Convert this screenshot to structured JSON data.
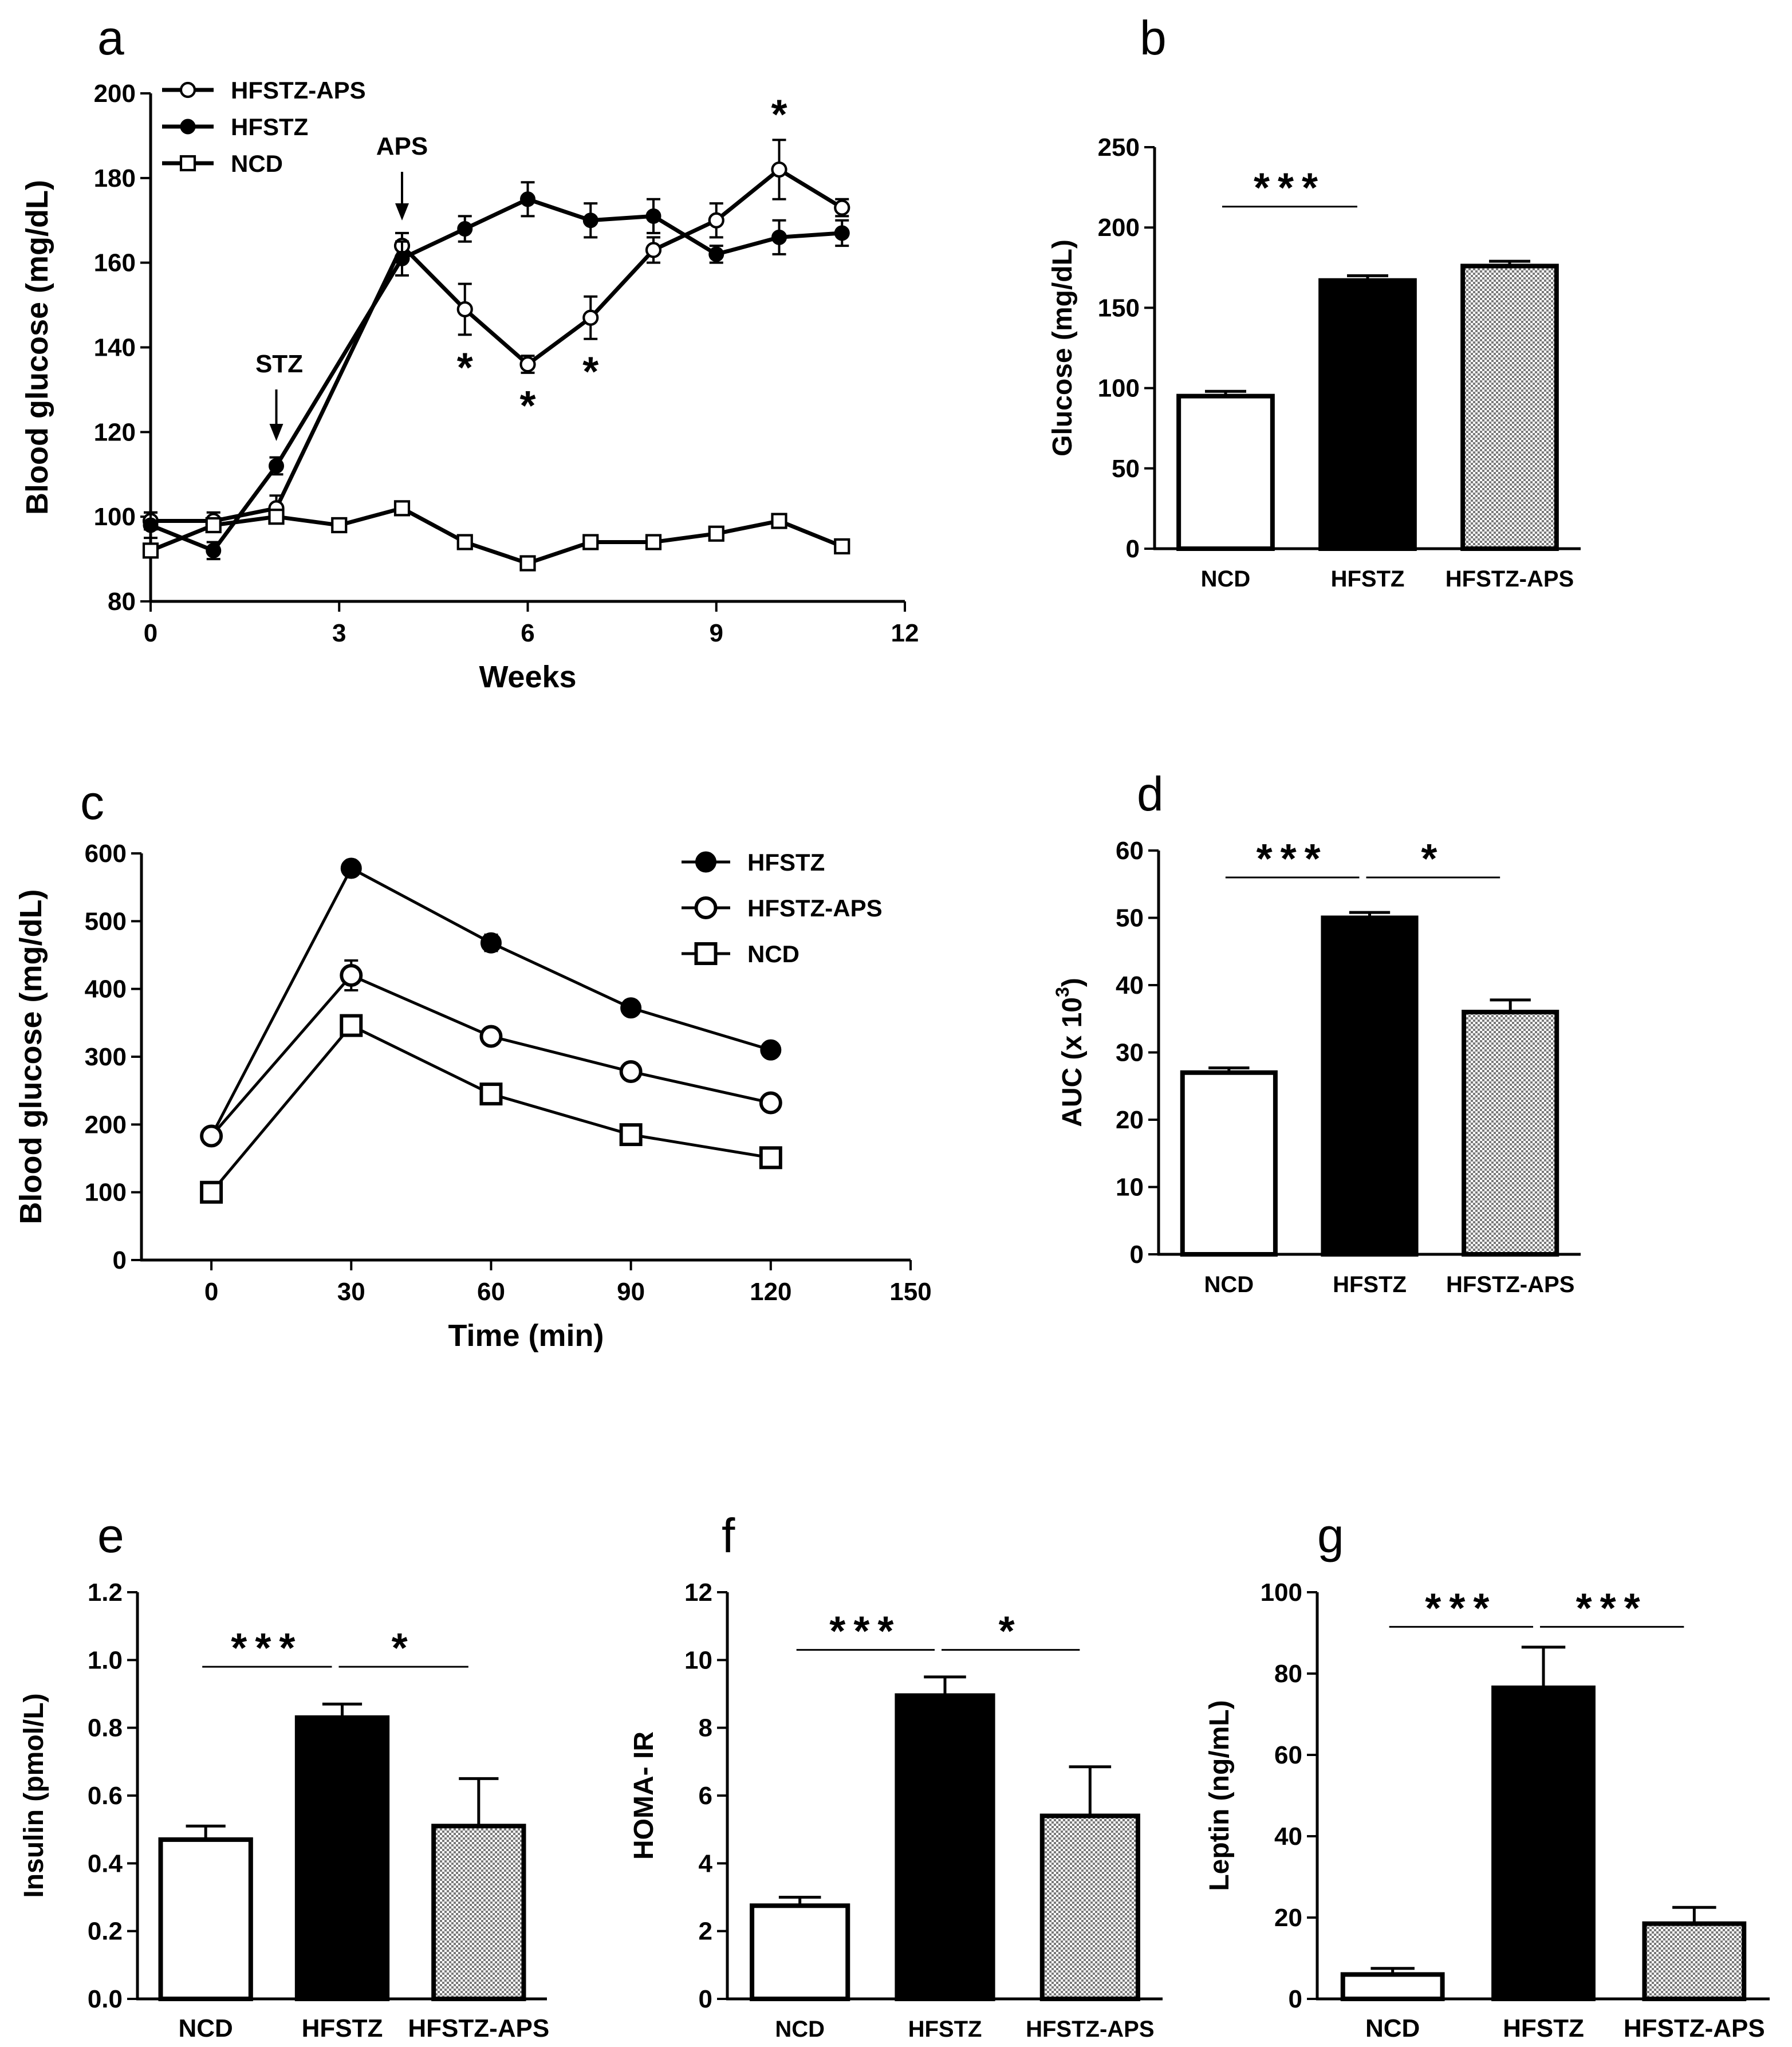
{
  "colors": {
    "black": "#000000",
    "white": "#ffffff",
    "hatch": "#9a9a9a"
  },
  "chart_data": [
    {
      "id": "a",
      "type": "line",
      "panel_label": "a",
      "xlabel": "Weeks",
      "ylabel": "Blood glucose (mg/dL)",
      "xlim": [
        0,
        12
      ],
      "ylim": [
        80,
        200
      ],
      "xticks": [
        0,
        3,
        6,
        9,
        12
      ],
      "yticks": [
        80,
        100,
        120,
        140,
        160,
        180,
        200
      ],
      "legend": [
        "HFSTZ-APS",
        "HFSTZ",
        "NCD"
      ],
      "annotations": {
        "stz": "STZ",
        "stz_week": 2,
        "aps": "APS",
        "aps_week": 4,
        "star": "*",
        "star_weeks": [
          5,
          6,
          7,
          10
        ]
      },
      "series": [
        {
          "name": "HFSTZ-APS",
          "marker": "open-circle",
          "x": [
            0,
            1,
            2,
            4,
            5,
            6,
            7,
            8,
            9,
            10,
            11
          ],
          "y": [
            99,
            99,
            102,
            164,
            149,
            136,
            147,
            163,
            170,
            182,
            173
          ],
          "err": [
            2,
            2,
            3,
            3,
            6,
            2,
            5,
            3,
            4,
            7,
            2
          ]
        },
        {
          "name": "HFSTZ",
          "marker": "filled-circle",
          "x": [
            0,
            1,
            2,
            4,
            5,
            6,
            7,
            8,
            9,
            10,
            11
          ],
          "y": [
            98,
            92,
            112,
            161,
            168,
            175,
            170,
            171,
            162,
            166,
            167
          ],
          "err": [
            3,
            2,
            2,
            4,
            3,
            4,
            4,
            4,
            2,
            4,
            3
          ]
        },
        {
          "name": "NCD",
          "marker": "open-square",
          "x": [
            0,
            1,
            2,
            3,
            4,
            5,
            6,
            7,
            8,
            9,
            10,
            11
          ],
          "y": [
            92,
            98,
            100,
            98,
            102,
            94,
            89,
            94,
            94,
            96,
            99,
            93
          ],
          "err": [
            1,
            1,
            1,
            1,
            1,
            1,
            1,
            1,
            1,
            1,
            1,
            1
          ]
        }
      ]
    },
    {
      "id": "b",
      "type": "bar",
      "panel_label": "b",
      "ylabel": "Glucose (mg/dL)",
      "categories": [
        "NCD",
        "HFSTZ",
        "HFSTZ-APS"
      ],
      "values": [
        95,
        167,
        176
      ],
      "err": [
        3,
        3,
        3
      ],
      "ylim": [
        0,
        250
      ],
      "yticks": [
        0,
        50,
        100,
        150,
        200,
        250
      ],
      "sig": [
        {
          "from": 0,
          "to": 1,
          "label": "***",
          "level": 213
        }
      ]
    },
    {
      "id": "c",
      "type": "line",
      "panel_label": "c",
      "xlabel": "Time (min)",
      "ylabel": "Blood glucose (mg/dL)",
      "xlim": [
        -15,
        150
      ],
      "ylim": [
        0,
        600
      ],
      "xticks": [
        0,
        30,
        60,
        90,
        120,
        150
      ],
      "yticks": [
        0,
        100,
        200,
        300,
        400,
        500,
        600
      ],
      "legend": [
        "HFSTZ",
        "HFSTZ-APS",
        "NCD"
      ],
      "series": [
        {
          "name": "HFSTZ",
          "marker": "filled-circle",
          "x": [
            0,
            30,
            60,
            90,
            120
          ],
          "y": [
            183,
            578,
            468,
            372,
            310
          ],
          "err": [
            0,
            0,
            12,
            0,
            0
          ]
        },
        {
          "name": "HFSTZ-APS",
          "marker": "open-circle",
          "x": [
            0,
            30,
            60,
            90,
            120
          ],
          "y": [
            183,
            420,
            330,
            278,
            232
          ],
          "err": [
            0,
            22,
            0,
            0,
            0
          ]
        },
        {
          "name": "NCD",
          "marker": "open-square",
          "x": [
            0,
            30,
            60,
            90,
            120
          ],
          "y": [
            100,
            346,
            245,
            185,
            151
          ],
          "err": [
            0,
            10,
            0,
            0,
            0
          ]
        }
      ]
    },
    {
      "id": "d",
      "type": "bar",
      "panel_label": "d",
      "ylabel": "AUC (x 10",
      "ylabel_sup": "3",
      "ylabel_end": ")",
      "categories": [
        "NCD",
        "HFSTZ",
        "HFSTZ-APS"
      ],
      "values": [
        27,
        50,
        36
      ],
      "err": [
        0.7,
        0.8,
        1.8
      ],
      "ylim": [
        0,
        60
      ],
      "yticks": [
        0,
        10,
        20,
        30,
        40,
        50,
        60
      ],
      "sig": [
        {
          "from": 0,
          "to": 1,
          "label": "***",
          "level": 56
        },
        {
          "from": 1,
          "to": 2,
          "label": "*",
          "level": 56
        }
      ]
    },
    {
      "id": "e",
      "type": "bar",
      "panel_label": "e",
      "ylabel": "Insulin (pmol/L)",
      "categories": [
        "NCD",
        "HFSTZ",
        "HFSTZ-APS"
      ],
      "values": [
        0.47,
        0.83,
        0.51
      ],
      "err": [
        0.04,
        0.04,
        0.14
      ],
      "ylim": [
        0,
        1.2
      ],
      "yticks": [
        0.0,
        0.2,
        0.4,
        0.6,
        0.8,
        1.0,
        1.2
      ],
      "tick_decimals": 1,
      "sig": [
        {
          "from": 0,
          "to": 1,
          "label": "***",
          "level": 0.98
        },
        {
          "from": 1,
          "to": 2,
          "label": "*",
          "level": 0.98
        }
      ]
    },
    {
      "id": "f",
      "type": "bar",
      "panel_label": "f",
      "ylabel": "HOMA- IR",
      "categories": [
        "NCD",
        "HFSTZ",
        "HFSTZ-APS"
      ],
      "values": [
        2.75,
        8.95,
        5.4
      ],
      "err": [
        0.25,
        0.55,
        1.45
      ],
      "ylim": [
        0,
        12
      ],
      "yticks": [
        0,
        2,
        4,
        6,
        8,
        10,
        12
      ],
      "sig": [
        {
          "from": 0,
          "to": 1,
          "label": "***",
          "level": 10.3
        },
        {
          "from": 1,
          "to": 2,
          "label": "*",
          "level": 10.3
        }
      ]
    },
    {
      "id": "g",
      "type": "bar",
      "panel_label": "g",
      "ylabel": "Leptin (ng/mL)",
      "categories": [
        "NCD",
        "HFSTZ",
        "HFSTZ-APS"
      ],
      "values": [
        6,
        76.5,
        18.5
      ],
      "err": [
        1.5,
        10,
        4
      ],
      "ylim": [
        0,
        100
      ],
      "yticks": [
        0,
        20,
        40,
        60,
        80,
        100
      ],
      "sig": [
        {
          "from": 0,
          "to": 1,
          "label": "***",
          "level": 91.5
        },
        {
          "from": 1,
          "to": 2,
          "label": "***",
          "level": 91.5
        }
      ]
    }
  ]
}
